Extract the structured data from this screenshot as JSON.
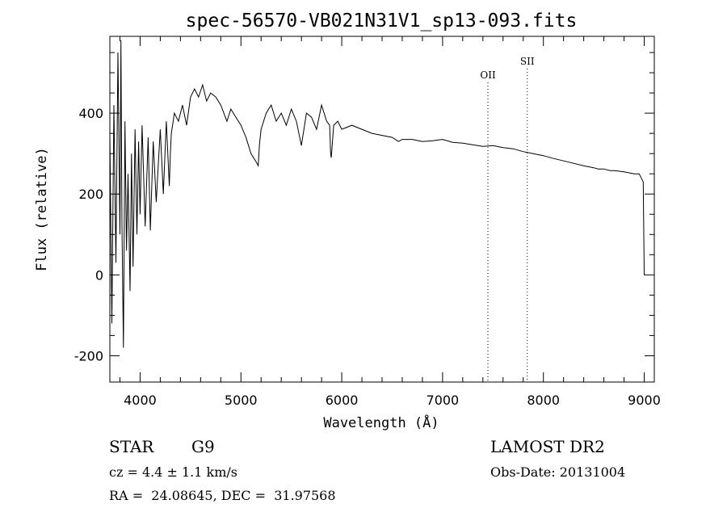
{
  "chart_data": {
    "type": "line",
    "title": "spec-56570-VB021N31V1_sp13-093.fits",
    "xlabel": "Wavelength (Å)",
    "ylabel": "Flux (relative)",
    "xlim": [
      3700,
      9100
    ],
    "ylim": [
      -265,
      590
    ],
    "x_ticks": [
      4000,
      5000,
      6000,
      7000,
      8000,
      9000
    ],
    "y_ticks": [
      -200,
      0,
      200,
      400
    ],
    "grid": false,
    "line_color": "#000000",
    "series": [
      {
        "x": [
          3700,
          3720,
          3740,
          3760,
          3780,
          3800,
          3810,
          3820,
          3835,
          3850,
          3865,
          3880,
          3900,
          3915,
          3930,
          3950,
          3968,
          3985,
          4000,
          4020,
          4050,
          4080,
          4101,
          4130,
          4160,
          4200,
          4230,
          4260,
          4290,
          4300,
          4310,
          4340,
          4380,
          4420,
          4461,
          4500,
          4540,
          4580,
          4620,
          4660,
          4700,
          4750,
          4800,
          4861,
          4900,
          4950,
          5000,
          5050,
          5100,
          5150,
          5172,
          5183,
          5200,
          5250,
          5300,
          5350,
          5400,
          5450,
          5500,
          5550,
          5600,
          5650,
          5700,
          5750,
          5800,
          5850,
          5880,
          5890,
          5896,
          5920,
          5960,
          6000,
          6100,
          6200,
          6300,
          6400,
          6500,
          6563,
          6600,
          6700,
          6800,
          6900,
          7000,
          7100,
          7200,
          7300,
          7400,
          7500,
          7600,
          7700,
          7800,
          7900,
          8000,
          8100,
          8200,
          8300,
          8400,
          8500,
          8542,
          8600,
          8662,
          8700,
          8800,
          8900,
          8950,
          8990,
          9000,
          9005
        ],
        "y": [
          350,
          -120,
          420,
          30,
          550,
          100,
          580,
          120,
          -180,
          380,
          60,
          250,
          -40,
          300,
          20,
          360,
          100,
          330,
          150,
          370,
          120,
          340,
          110,
          330,
          180,
          360,
          200,
          380,
          220,
          300,
          350,
          400,
          380,
          420,
          370,
          440,
          460,
          440,
          470,
          430,
          450,
          440,
          420,
          380,
          410,
          390,
          370,
          340,
          300,
          280,
          270,
          320,
          360,
          400,
          420,
          380,
          400,
          370,
          410,
          380,
          320,
          400,
          390,
          360,
          420,
          380,
          370,
          300,
          290,
          370,
          380,
          360,
          370,
          360,
          350,
          345,
          340,
          330,
          335,
          335,
          330,
          332,
          335,
          328,
          326,
          322,
          318,
          320,
          315,
          312,
          305,
          300,
          295,
          288,
          282,
          276,
          270,
          265,
          262,
          262,
          258,
          258,
          255,
          250,
          250,
          230,
          0,
          0
        ]
      }
    ],
    "annotations": [
      {
        "label": "OII",
        "x": 7450
      },
      {
        "label": "SII",
        "x": 7840
      }
    ]
  },
  "info": {
    "object_class": "STAR",
    "subclass": "G9",
    "survey": "LAMOST DR2",
    "cz": "cz = 4.4 ± 1.1 km/s",
    "obs_date": "Obs-Date: 20131004",
    "coords": "RA =  24.08645, DEC =  31.97568"
  }
}
